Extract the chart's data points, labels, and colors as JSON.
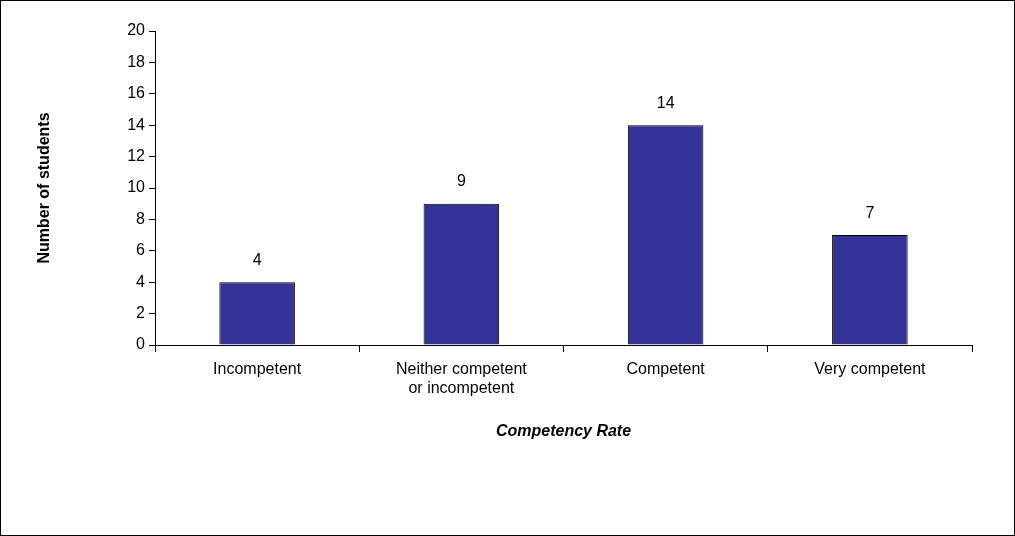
{
  "chart_data": {
    "type": "bar",
    "xlabel": "Competency Rate",
    "ylabel": "Number of students",
    "categories": [
      "Incompetent",
      "Neither competent or incompetent",
      "Competent",
      "Very competent"
    ],
    "values": [
      4,
      9,
      14,
      7
    ],
    "color": "#333399",
    "ylim": [
      0,
      20
    ],
    "yticks": [
      0,
      2,
      4,
      6,
      8,
      10,
      12,
      14,
      16,
      18,
      20
    ],
    "grid": false,
    "legend": false,
    "data_labels": true
  }
}
